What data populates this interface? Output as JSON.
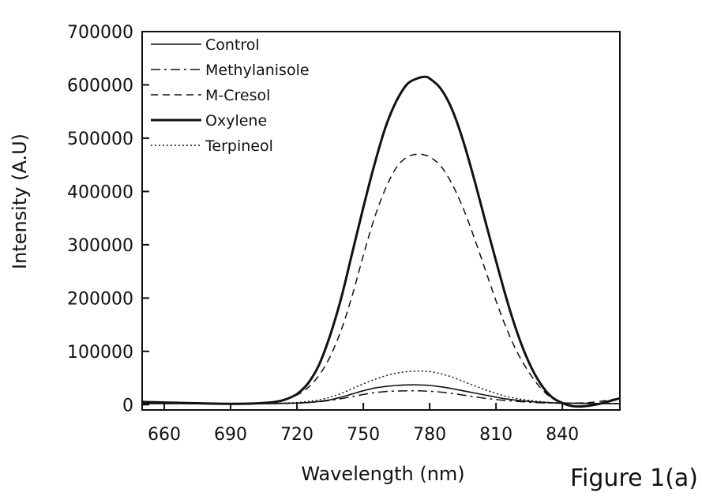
{
  "chart_data": {
    "type": "line",
    "title": "",
    "xlabel": "Wavelength (nm)",
    "ylabel": "Intensity (A.U)",
    "xlim": [
      650,
      866
    ],
    "ylim": [
      -10000,
      700000
    ],
    "xticks": [
      660,
      690,
      720,
      750,
      780,
      810,
      840
    ],
    "yticks": [
      0,
      100000,
      200000,
      300000,
      400000,
      500000,
      600000,
      700000
    ],
    "x_tick_labels": [
      "660",
      "690",
      "720",
      "750",
      "780",
      "810",
      "840"
    ],
    "y_tick_labels": [
      "0",
      "100000",
      "200000",
      "300000",
      "400000",
      "500000",
      "600000",
      "700000"
    ],
    "legend_position": "top-left",
    "x": [
      650,
      660,
      670,
      680,
      690,
      700,
      710,
      715,
      720,
      725,
      730,
      735,
      740,
      745,
      750,
      755,
      760,
      765,
      770,
      775,
      778,
      780,
      785,
      790,
      795,
      800,
      805,
      810,
      815,
      820,
      825,
      830,
      835,
      840,
      845,
      850,
      855,
      860,
      866
    ],
    "series": [
      {
        "name": "Control",
        "style": "solid",
        "width": 1.6,
        "values": [
          2000,
          2000,
          2000,
          2000,
          2000,
          2000,
          2000,
          2500,
          3000,
          4000,
          6000,
          9000,
          14000,
          20000,
          26000,
          31000,
          34000,
          36000,
          37000,
          37000,
          36500,
          36000,
          33500,
          30000,
          26000,
          22000,
          18000,
          14000,
          10500,
          8000,
          6000,
          4500,
          3500,
          3000,
          2500,
          2500,
          2000,
          2000,
          2000
        ]
      },
      {
        "name": "Methylanisole",
        "style": "dashdot",
        "width": 1.5,
        "values": [
          2000,
          2000,
          2000,
          2000,
          2000,
          2000,
          2000,
          2500,
          3000,
          4000,
          5500,
          8000,
          11000,
          15000,
          19000,
          22500,
          24500,
          25500,
          26000,
          26000,
          25500,
          25000,
          23500,
          21000,
          18000,
          15000,
          12000,
          9500,
          7500,
          6000,
          4500,
          3500,
          3000,
          2500,
          2500,
          2000,
          2000,
          2000,
          2000
        ]
      },
      {
        "name": "M-Cresol",
        "style": "dashed",
        "width": 1.5,
        "values": [
          5000,
          4000,
          3000,
          2000,
          1500,
          2000,
          5000,
          10000,
          18000,
          32000,
          55000,
          90000,
          140000,
          205000,
          280000,
          350000,
          405000,
          445000,
          465000,
          470000,
          468000,
          465000,
          448000,
          415000,
          370000,
          315000,
          255000,
          195000,
          140000,
          95000,
          60000,
          32000,
          13000,
          4000,
          3000,
          3500,
          5000,
          8000,
          12000
        ]
      },
      {
        "name": "Oxylene",
        "style": "solid",
        "width": 3,
        "values": [
          5000,
          4000,
          3000,
          2000,
          1500,
          2000,
          5000,
          10000,
          20000,
          40000,
          75000,
          130000,
          200000,
          285000,
          370000,
          450000,
          520000,
          570000,
          602000,
          613000,
          615000,
          612000,
          593000,
          555000,
          497000,
          425000,
          347000,
          270000,
          195000,
          130000,
          78000,
          40000,
          15000,
          3000,
          -3000,
          -3000,
          0,
          5000,
          12000
        ]
      },
      {
        "name": "Terpineol",
        "style": "dotted",
        "width": 1.5,
        "values": [
          2000,
          2000,
          2000,
          2000,
          2000,
          2000,
          2500,
          3000,
          4000,
          6000,
          9000,
          14000,
          21000,
          30000,
          39000,
          47000,
          54000,
          59000,
          62000,
          63000,
          62500,
          62000,
          58000,
          52000,
          44000,
          36000,
          28000,
          21000,
          15000,
          11000,
          8000,
          5500,
          4000,
          3000,
          2500,
          2500,
          2000,
          2000,
          2000
        ]
      }
    ]
  },
  "figure_label": "Figure 1(a)"
}
